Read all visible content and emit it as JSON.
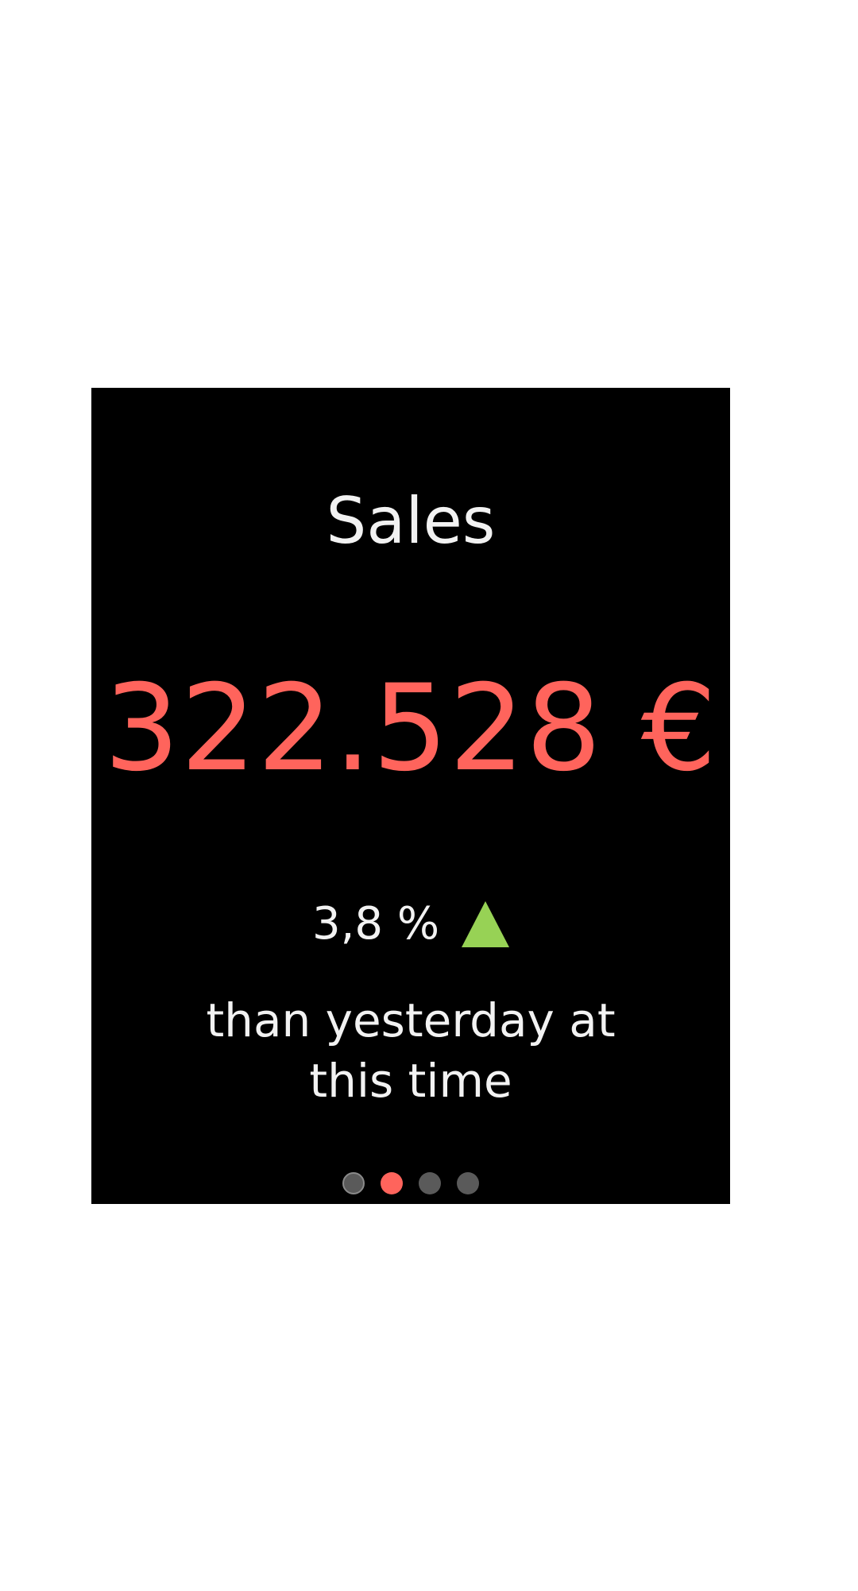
{
  "title": "Sales",
  "amount": "322.528 €",
  "change": {
    "value": "3,8 %",
    "direction": "up",
    "icon": "triangle-up-icon"
  },
  "caption": {
    "line1": "than yesterday at",
    "line2": "this time"
  },
  "pager": {
    "pages": 4,
    "active_index": 1
  },
  "colors": {
    "amount": "#ff645c",
    "trend_up": "#97d255",
    "active_dot": "#ff645c",
    "inactive_dot": "#5a5a5a"
  }
}
